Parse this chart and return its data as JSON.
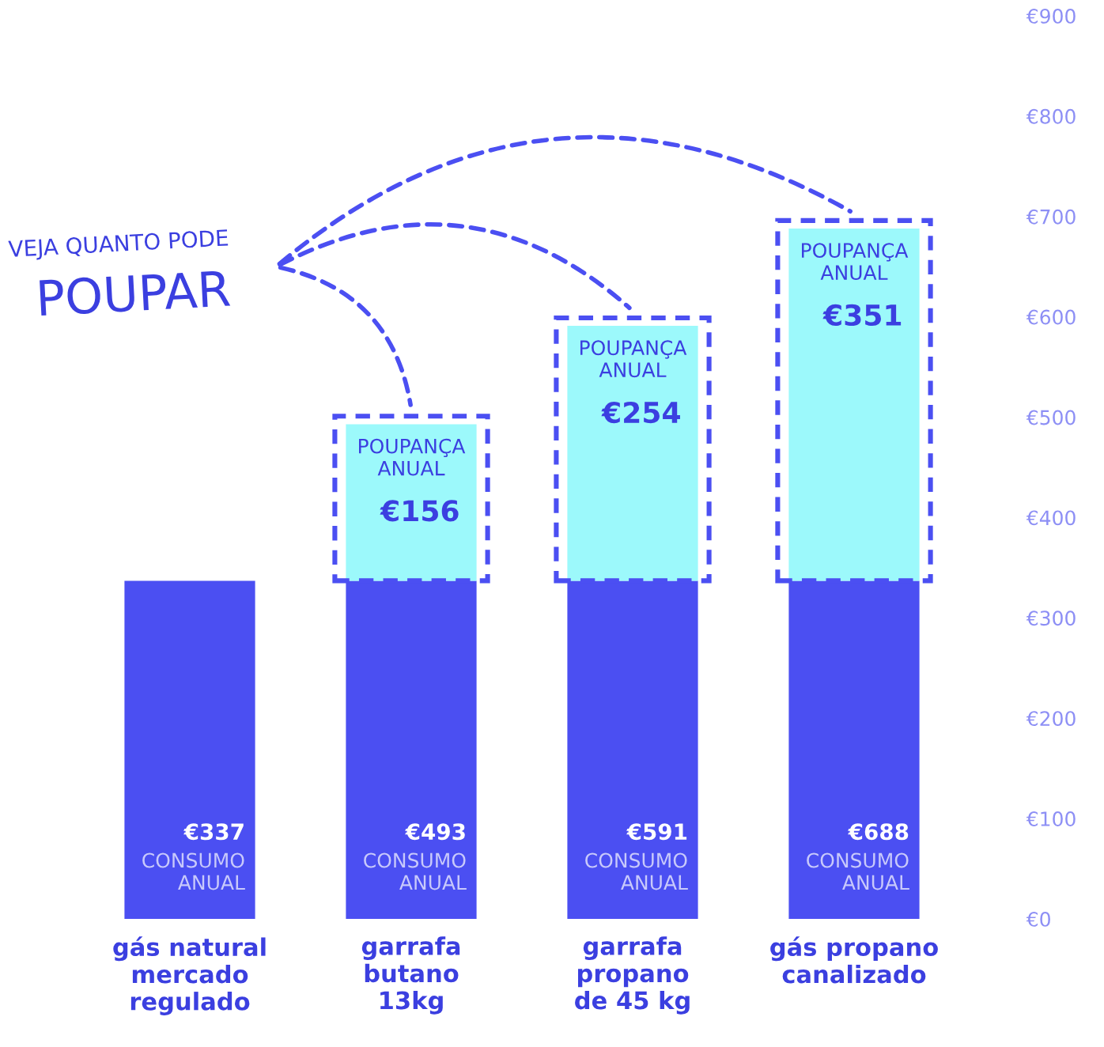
{
  "chart_data": {
    "type": "bar",
    "stacked": true,
    "categories": [
      "gás natural\nmercado\nregulado",
      "garrafa\nbutano\n13kg",
      "garrafa\npropano\nde 45 kg",
      "gás propano\ncanalizado"
    ],
    "series": [
      {
        "name": "CONSUMO ANUAL",
        "color": "#4b4ff2",
        "values": [
          337,
          337,
          337,
          337
        ]
      },
      {
        "name": "POUPANÇA ANUAL",
        "color": "#9cf9fb",
        "values": [
          null,
          156,
          254,
          351
        ],
        "value_labels": [
          null,
          "€156",
          "€254",
          "€351"
        ]
      }
    ],
    "totals": [
      "€337",
      "€493",
      "€591",
      "€688"
    ],
    "ylim": [
      0,
      900
    ],
    "yticks": [
      {
        "value": 0,
        "label": "€0"
      },
      {
        "value": 100,
        "label": "€100"
      },
      {
        "value": 200,
        "label": "€200"
      },
      {
        "value": 300,
        "label": "€300"
      },
      {
        "value": 400,
        "label": "€400"
      },
      {
        "value": 500,
        "label": "€500"
      },
      {
        "value": 600,
        "label": "€600"
      },
      {
        "value": 700,
        "label": "€700"
      },
      {
        "value": 800,
        "label": "€800"
      },
      {
        "value": 900,
        "label": "€900"
      }
    ],
    "grid": false,
    "legend": false,
    "annotations": [
      "VEJA QUANTO PODE",
      "POUPAR"
    ]
  }
}
